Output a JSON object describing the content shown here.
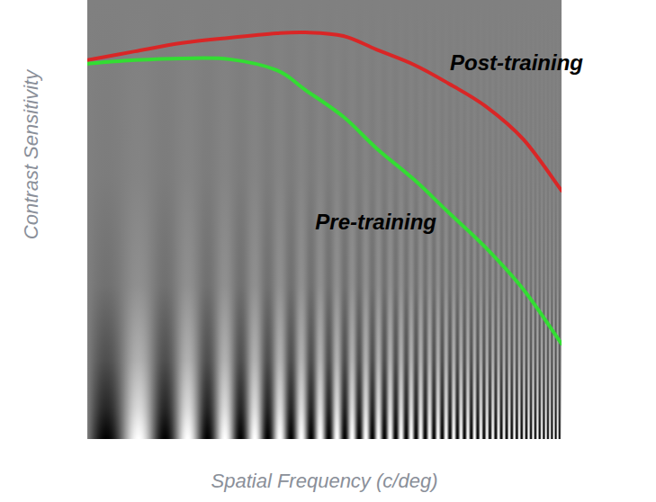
{
  "chart_data": {
    "type": "line",
    "x_label": "Spatial Frequency (c/deg)",
    "y_label": "Contrast Sensitivity",
    "x": [
      0,
      10,
      20,
      30,
      40,
      46,
      54,
      61,
      69,
      76,
      84,
      92,
      100
    ],
    "xlim": [
      0,
      100
    ],
    "ylim": [
      0,
      100
    ],
    "tick_labels": false,
    "series": [
      {
        "name": "Post-training",
        "color": "#d92626",
        "values": [
          86.3,
          88.3,
          90.2,
          91.4,
          92.4,
          92.6,
          91.8,
          88.7,
          85.2,
          81.1,
          75.8,
          68.2,
          56.6
        ]
      },
      {
        "name": "Pre-training",
        "color": "#33dd33",
        "values": [
          85.5,
          86.3,
          86.7,
          86.5,
          84.0,
          79.5,
          73.4,
          66.2,
          59.0,
          51.8,
          43.6,
          34.0,
          21.7
        ]
      }
    ]
  }
}
